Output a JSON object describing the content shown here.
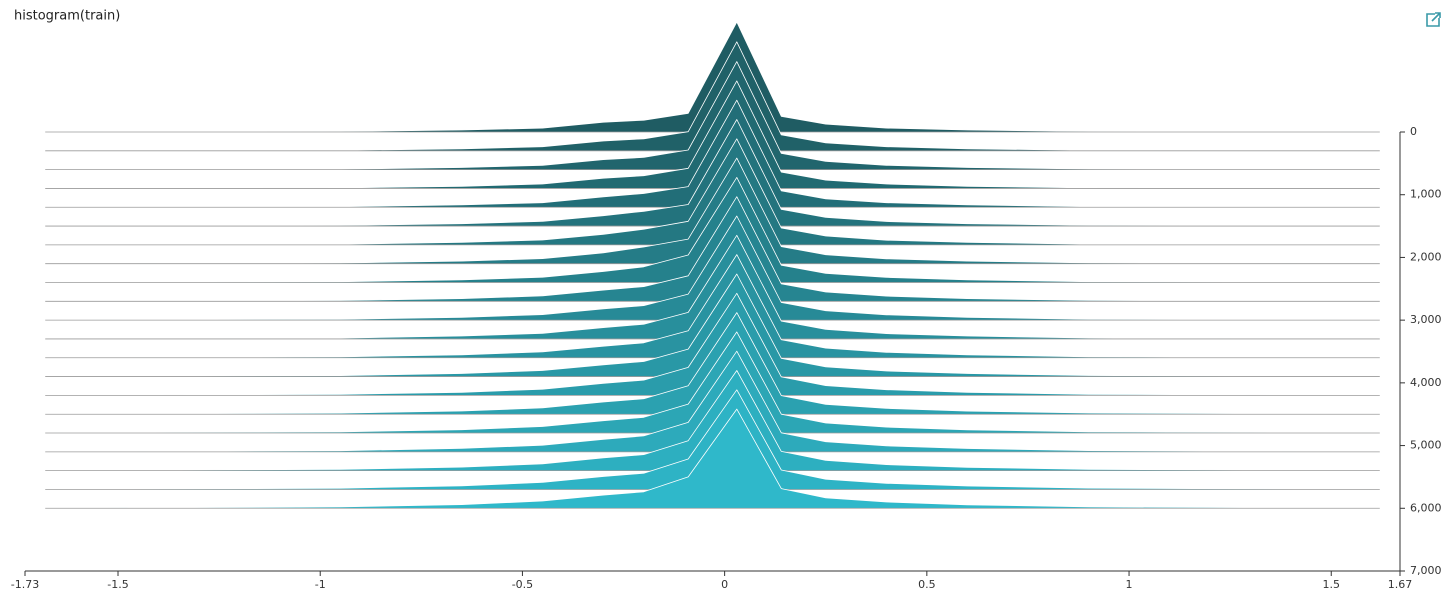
{
  "chart_data": {
    "type": "ridgeline",
    "title": "histogram(train)",
    "xlim": [
      -1.73,
      1.67
    ],
    "xticks": [
      -1.73,
      -1.5,
      -1,
      -0.5,
      0,
      0.5,
      1,
      1.5,
      1.67
    ],
    "ylim": [
      0,
      7000
    ],
    "yticks": [
      0,
      {
        "value": 1000,
        "label": "1,000"
      },
      {
        "value": 2000,
        "label": "2,000"
      },
      {
        "value": 3000,
        "label": "3,000"
      },
      {
        "value": 4000,
        "label": "4,000"
      },
      {
        "value": 5000,
        "label": "5,000"
      },
      {
        "value": 6000,
        "label": "6,000"
      },
      {
        "value": 7000,
        "label": "7,000"
      }
    ],
    "color_start": "#1f5c63",
    "color_end": "#2fb8ca",
    "x": [
      -1.68,
      -0.95,
      -0.65,
      -0.45,
      -0.3,
      -0.2,
      -0.09,
      0.03,
      0.14,
      0.25,
      0.4,
      0.6,
      0.9,
      1.62
    ],
    "slices": [
      {
        "step": 0,
        "values": [
          0,
          5,
          20,
          40,
          100,
          120,
          190,
          1120,
          160,
          80,
          40,
          20,
          5,
          0
        ]
      },
      {
        "step": 300,
        "values": [
          0,
          5,
          20,
          42,
          100,
          122,
          195,
          1110,
          162,
          82,
          42,
          20,
          5,
          0
        ]
      },
      {
        "step": 600,
        "values": [
          0,
          5,
          22,
          44,
          102,
          125,
          200,
          1100,
          165,
          84,
          44,
          22,
          6,
          0
        ]
      },
      {
        "step": 900,
        "values": [
          0,
          6,
          22,
          45,
          104,
          130,
          205,
          1095,
          166,
          85,
          45,
          22,
          6,
          0
        ]
      },
      {
        "step": 1200,
        "values": [
          0,
          6,
          24,
          46,
          105,
          140,
          210,
          1090,
          168,
          86,
          46,
          24,
          6,
          0
        ]
      },
      {
        "step": 1500,
        "values": [
          0,
          6,
          24,
          48,
          106,
          150,
          220,
          1085,
          170,
          88,
          47,
          24,
          7,
          0
        ]
      },
      {
        "step": 1800,
        "values": [
          0,
          7,
          25,
          50,
          108,
          160,
          240,
          1080,
          172,
          90,
          48,
          25,
          7,
          0
        ]
      },
      {
        "step": 2100,
        "values": [
          0,
          7,
          26,
          52,
          110,
          170,
          250,
          1075,
          174,
          92,
          50,
          26,
          8,
          0
        ]
      },
      {
        "step": 2400,
        "values": [
          0,
          8,
          27,
          54,
          112,
          160,
          280,
          1070,
          176,
          94,
          52,
          27,
          8,
          0
        ]
      },
      {
        "step": 2700,
        "values": [
          0,
          8,
          28,
          55,
          114,
          150,
          260,
          1065,
          178,
          95,
          53,
          28,
          9,
          0
        ]
      },
      {
        "step": 3000,
        "values": [
          0,
          9,
          29,
          56,
          115,
          148,
          265,
          1060,
          180,
          96,
          54,
          29,
          9,
          0
        ]
      },
      {
        "step": 3300,
        "values": [
          0,
          9,
          30,
          58,
          116,
          150,
          270,
          1055,
          182,
          97,
          55,
          30,
          10,
          0
        ]
      },
      {
        "step": 3600,
        "values": [
          0,
          10,
          30,
          60,
          118,
          152,
          275,
          1050,
          184,
          98,
          56,
          30,
          10,
          0
        ]
      },
      {
        "step": 3900,
        "values": [
          0,
          10,
          31,
          62,
          120,
          154,
          280,
          1045,
          186,
          99,
          57,
          31,
          11,
          0
        ]
      },
      {
        "step": 4200,
        "values": [
          0,
          11,
          32,
          63,
          122,
          156,
          285,
          1040,
          188,
          100,
          58,
          32,
          11,
          0
        ]
      },
      {
        "step": 4500,
        "values": [
          0,
          11,
          33,
          64,
          124,
          158,
          290,
          1035,
          190,
          101,
          59,
          32,
          12,
          0
        ]
      },
      {
        "step": 4800,
        "values": [
          0,
          12,
          34,
          66,
          126,
          160,
          295,
          1030,
          192,
          102,
          60,
          33,
          12,
          0
        ]
      },
      {
        "step": 5100,
        "values": [
          0,
          12,
          35,
          68,
          128,
          162,
          300,
          1025,
          194,
          103,
          61,
          34,
          13,
          0
        ]
      },
      {
        "step": 5400,
        "values": [
          0,
          13,
          36,
          70,
          130,
          164,
          305,
          1020,
          196,
          104,
          62,
          34,
          13,
          0
        ]
      },
      {
        "step": 5700,
        "values": [
          0,
          13,
          37,
          72,
          132,
          166,
          310,
          1015,
          198,
          105,
          63,
          35,
          14,
          0
        ]
      },
      {
        "step": 6000,
        "values": [
          0,
          14,
          38,
          74,
          134,
          168,
          320,
          1010,
          200,
          106,
          64,
          36,
          14,
          0
        ]
      }
    ]
  }
}
